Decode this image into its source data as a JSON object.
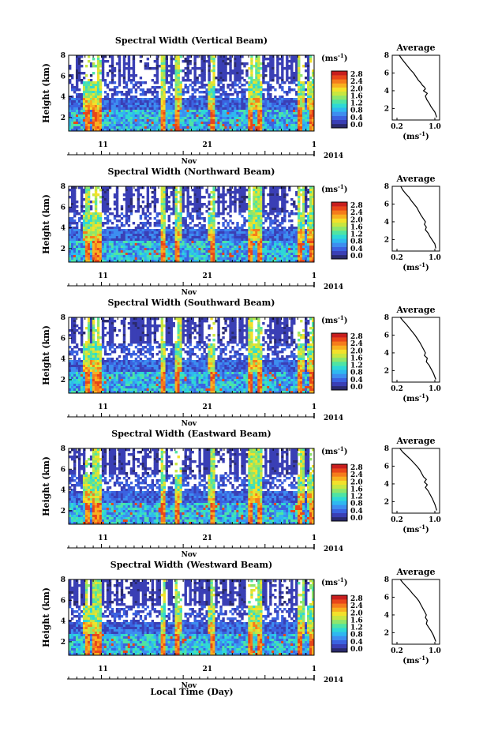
{
  "figure": {
    "xlabel": "Local Time (Day)",
    "month_label": "Nov",
    "year_label": "2014"
  },
  "colors": {
    "scale": [
      "#2a2a6e",
      "#3a3fb5",
      "#3b62e0",
      "#3d8ef0",
      "#2fb8f0",
      "#2ed8d6",
      "#4fe4a4",
      "#8ee66c",
      "#c8e640",
      "#f3e12a",
      "#f8b020",
      "#f57c1c",
      "#e8461a",
      "#c81e1e"
    ],
    "background": "#ffffff"
  },
  "chart_data": [
    {
      "type": "heatmap",
      "title": "Spectral Width (Vertical Beam)",
      "ylabel": "Height (km)",
      "yticks": [
        "2",
        "4",
        "6",
        "8"
      ],
      "ylim": [
        0.7,
        8
      ],
      "xticks": [
        "11",
        "21",
        "1"
      ],
      "colorbar_unit": "(ms",
      "colorbar_exp": "-1",
      "colorbar_ticks": [
        "2.8",
        "2.4",
        "2.0",
        "1.6",
        "1.2",
        "0.8",
        "0.4",
        "0.0"
      ],
      "profile": {
        "title": "Average",
        "xlabel": "(ms",
        "xexp": "-1",
        "xticks": [
          "0.2",
          "1.0"
        ],
        "yticks": [
          "2",
          "4",
          "6",
          "8"
        ],
        "x": [
          0.25,
          0.3,
          0.36,
          0.42,
          0.48,
          0.55,
          0.6,
          0.65,
          0.7,
          0.74,
          0.78,
          0.8,
          0.76,
          0.84,
          0.8,
          0.83,
          0.88,
          0.92,
          1.0,
          1.04
        ],
        "y": [
          8,
          7.6,
          7.2,
          6.8,
          6.4,
          6.0,
          5.6,
          5.2,
          4.9,
          4.6,
          4.4,
          4.2,
          4.0,
          3.7,
          3.4,
          3.0,
          2.6,
          2.2,
          1.6,
          1.0
        ]
      }
    },
    {
      "type": "heatmap",
      "title": "Spectral Width (Northward Beam)",
      "ylabel": "Height (km)",
      "yticks": [
        "2",
        "4",
        "6",
        "8"
      ],
      "ylim": [
        0.7,
        8
      ],
      "xticks": [
        "11",
        "21",
        "1"
      ],
      "colorbar_unit": "(ms",
      "colorbar_exp": "-1",
      "colorbar_ticks": [
        "2.8",
        "2.4",
        "2.0",
        "1.6",
        "1.2",
        "0.8",
        "0.4",
        "0.0"
      ],
      "profile": {
        "title": "Average",
        "xlabel": "(ms",
        "xexp": "-1",
        "xticks": [
          "0.2",
          "1.0"
        ],
        "yticks": [
          "2",
          "4",
          "6",
          "8"
        ],
        "x": [
          0.28,
          0.32,
          0.38,
          0.45,
          0.5,
          0.56,
          0.62,
          0.66,
          0.7,
          0.75,
          0.8,
          0.78,
          0.82,
          0.8,
          0.86,
          0.9,
          0.95,
          1.0,
          1.02
        ],
        "y": [
          8,
          7.6,
          7.2,
          6.8,
          6.4,
          6.0,
          5.6,
          5.2,
          4.8,
          4.4,
          4.0,
          3.7,
          3.4,
          3.1,
          2.7,
          2.3,
          1.9,
          1.5,
          1.0
        ]
      }
    },
    {
      "type": "heatmap",
      "title": "Spectral Width (Southward Beam)",
      "ylabel": "Height (km)",
      "yticks": [
        "2",
        "4",
        "6",
        "8"
      ],
      "ylim": [
        0.7,
        8
      ],
      "xticks": [
        "11",
        "21",
        "1"
      ],
      "colorbar_unit": "(ms",
      "colorbar_exp": "-1",
      "colorbar_ticks": [
        "2.8",
        "2.4",
        "2.0",
        "1.6",
        "1.2",
        "0.8",
        "0.4",
        "0.0"
      ],
      "profile": {
        "title": "Average",
        "xlabel": "(ms",
        "xexp": "-1",
        "xticks": [
          "0.2",
          "1.0"
        ],
        "yticks": [
          "2",
          "4",
          "6",
          "8"
        ],
        "x": [
          0.27,
          0.33,
          0.4,
          0.46,
          0.52,
          0.58,
          0.63,
          0.68,
          0.72,
          0.76,
          0.8,
          0.78,
          0.84,
          0.82,
          0.88,
          0.92,
          0.97,
          1.02
        ],
        "y": [
          8,
          7.6,
          7.2,
          6.8,
          6.4,
          6.0,
          5.6,
          5.2,
          4.8,
          4.4,
          4.0,
          3.7,
          3.4,
          3.0,
          2.6,
          2.2,
          1.7,
          1.0
        ]
      }
    },
    {
      "type": "heatmap",
      "title": "Spectral Width (Eastward Beam)",
      "ylabel": "Height (km)",
      "yticks": [
        "2",
        "4",
        "6",
        "8"
      ],
      "ylim": [
        0.7,
        8
      ],
      "xticks": [
        "11",
        "21",
        "1"
      ],
      "colorbar_unit": "(ms",
      "colorbar_exp": "-1",
      "colorbar_ticks": [
        "2.8",
        "2.4",
        "2.0",
        "1.6",
        "1.2",
        "0.8",
        "0.4",
        "0.0"
      ],
      "profile": {
        "title": "Average",
        "xlabel": "(ms",
        "xexp": "-1",
        "xticks": [
          "0.2",
          "1.0"
        ],
        "yticks": [
          "2",
          "4",
          "6",
          "8"
        ],
        "x": [
          0.26,
          0.32,
          0.4,
          0.48,
          0.55,
          0.62,
          0.68,
          0.72,
          0.76,
          0.82,
          0.78,
          0.84,
          0.8,
          0.86,
          0.9,
          0.95,
          1.0,
          1.04
        ],
        "y": [
          8,
          7.6,
          7.2,
          6.8,
          6.4,
          6.0,
          5.6,
          5.2,
          4.8,
          4.5,
          4.2,
          3.9,
          3.6,
          3.2,
          2.8,
          2.3,
          1.7,
          1.0
        ]
      }
    },
    {
      "type": "heatmap",
      "title": "Spectral Width (Westward Beam)",
      "ylabel": "Height (km)",
      "yticks": [
        "2",
        "4",
        "6",
        "8"
      ],
      "ylim": [
        0.7,
        8
      ],
      "xticks": [
        "11",
        "21",
        "1"
      ],
      "colorbar_unit": "(ms",
      "colorbar_exp": "-1",
      "colorbar_ticks": [
        "2.8",
        "2.4",
        "2.0",
        "1.6",
        "1.2",
        "0.8",
        "0.4",
        "0.0"
      ],
      "profile": {
        "title": "Average",
        "xlabel": "(ms",
        "xexp": "-1",
        "xticks": [
          "0.2",
          "1.0"
        ],
        "yticks": [
          "2",
          "4",
          "6",
          "8"
        ],
        "x": [
          0.27,
          0.33,
          0.4,
          0.47,
          0.53,
          0.6,
          0.66,
          0.7,
          0.74,
          0.78,
          0.82,
          0.8,
          0.84,
          0.82,
          0.87,
          0.92,
          0.97,
          1.02
        ],
        "y": [
          8,
          7.6,
          7.2,
          6.8,
          6.4,
          6.0,
          5.6,
          5.2,
          4.8,
          4.4,
          4.0,
          3.7,
          3.4,
          3.0,
          2.6,
          2.2,
          1.7,
          1.0
        ]
      }
    }
  ]
}
